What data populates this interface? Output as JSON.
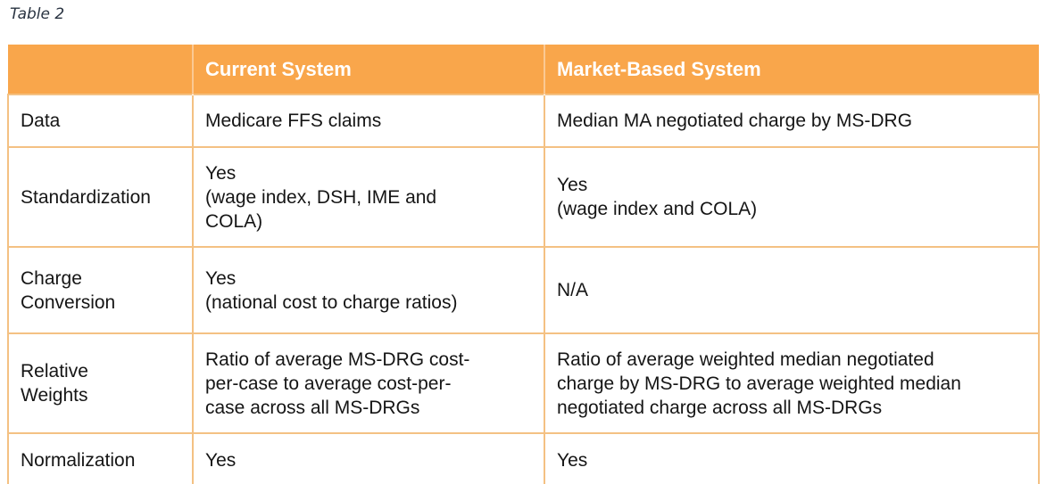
{
  "page": {
    "caption": "Table 2"
  },
  "table": {
    "headers": {
      "col1": "",
      "col2": "Current System",
      "col3": "Market-Based System"
    },
    "rows": [
      {
        "label": "Data",
        "current": "Medicare FFS claims",
        "market": "Median MA negotiated charge by MS-DRG"
      },
      {
        "label": "Standardization",
        "current": "Yes\n(wage index, DSH, IME and\nCOLA)",
        "market": "Yes\n(wage index and COLA)"
      },
      {
        "label": "Charge\nConversion",
        "current": "Yes\n(national cost to charge ratios)",
        "market": "N/A"
      },
      {
        "label": "Relative\nWeights",
        "current": "Ratio of average MS-DRG cost-\nper-case to average cost-per-\ncase across all MS-DRGs",
        "market": "Ratio of average weighted median negotiated\ncharge by MS-DRG to average weighted median\nnegotiated charge across all MS-DRGs"
      },
      {
        "label": "Normalization",
        "current": "Yes",
        "market": "Yes"
      }
    ],
    "colors": {
      "header_bg": "#f9a64b",
      "header_text": "#ffffff",
      "row_alt_bg": "#fdebd2",
      "row_bg": "#ffffff",
      "border": "#f4c183",
      "body_text": "#151515",
      "caption_text": "#2a3442"
    }
  }
}
